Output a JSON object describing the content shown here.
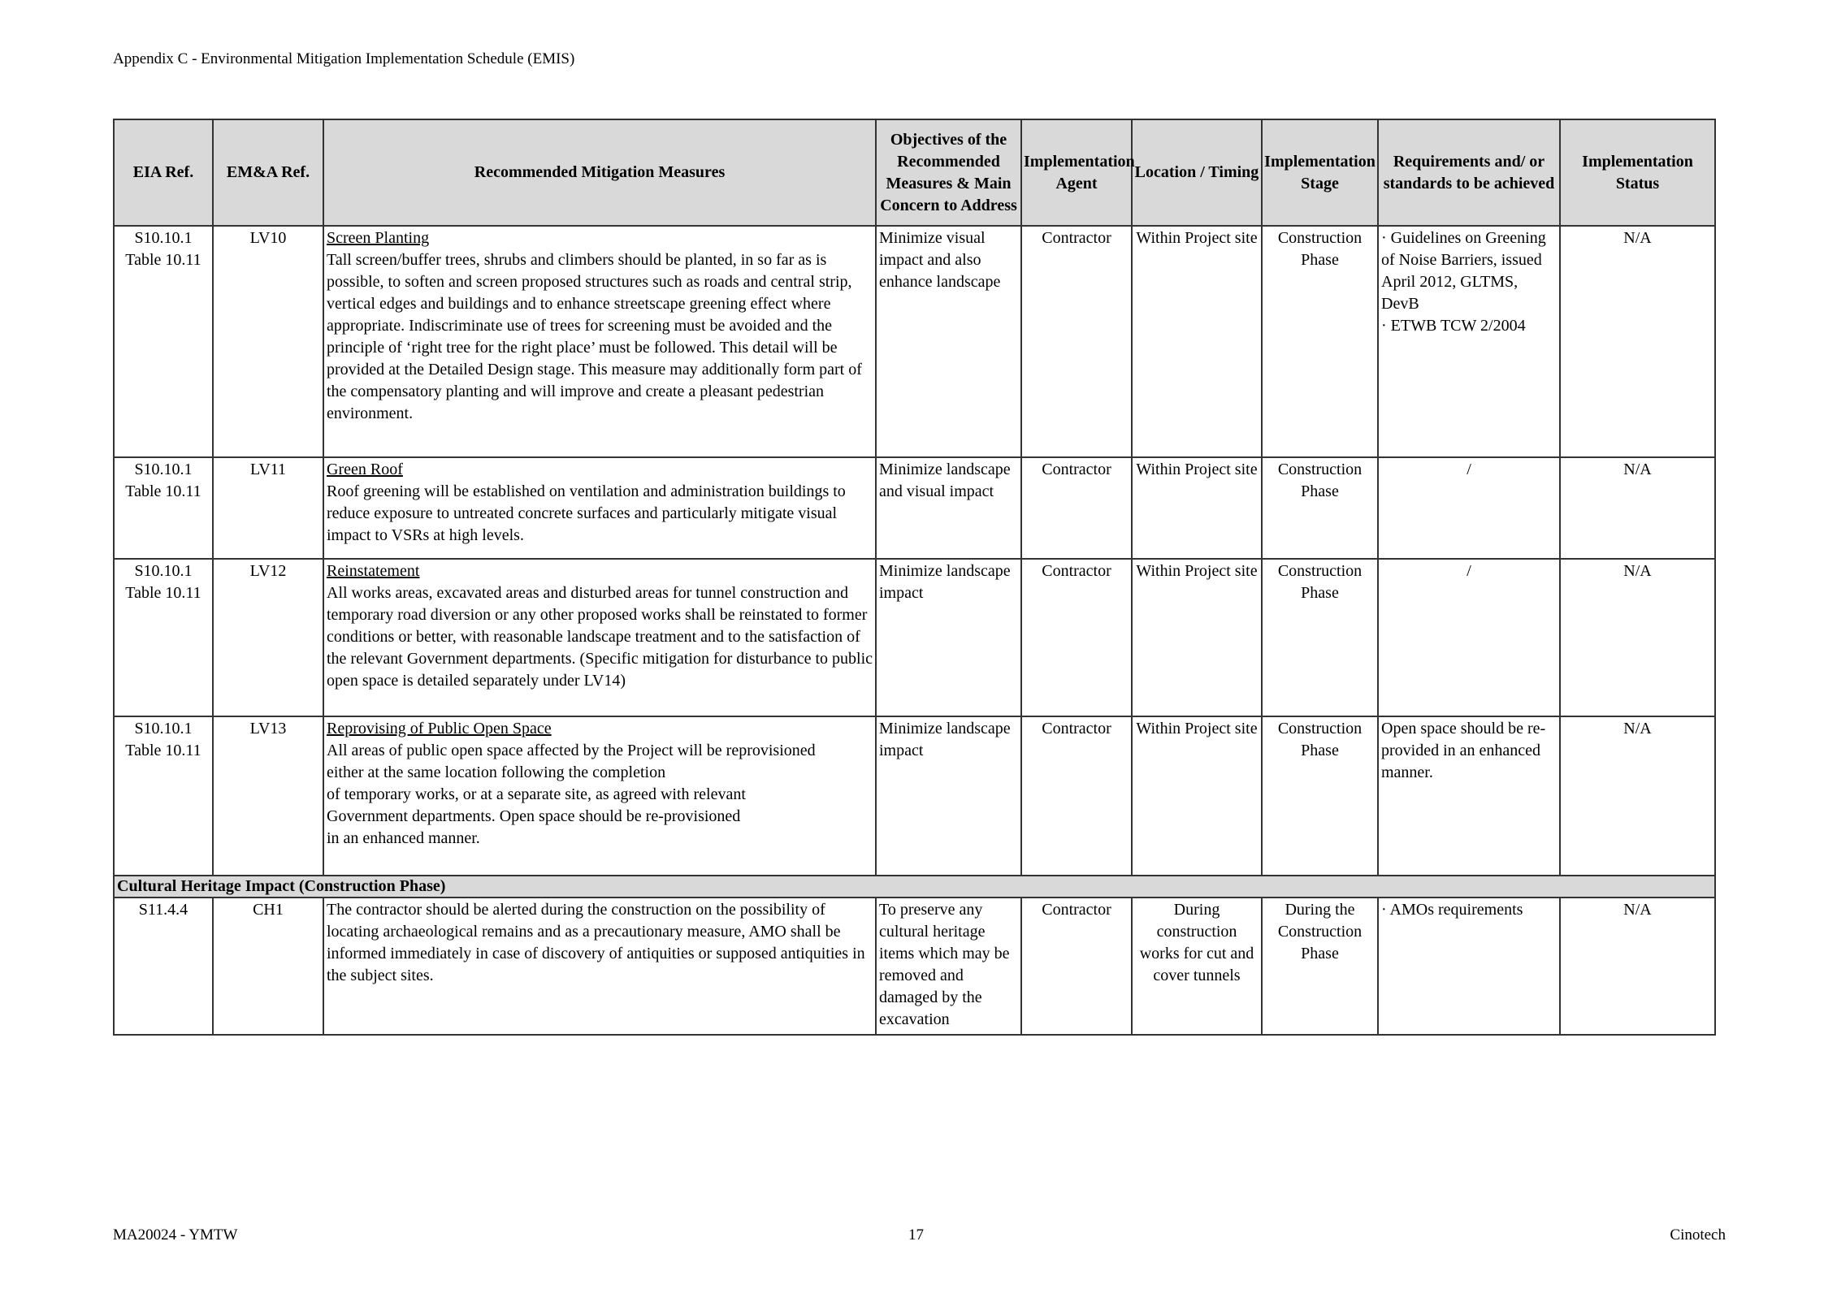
{
  "page_header": "Appendix C - Environmental Mitigation Implementation Schedule (EMIS)",
  "columns": [
    "EIA Ref.",
    "EM&A Ref.",
    "Recommended Mitigation Measures",
    "Objectives of the Recommended Measures & Main Concern to Address",
    "Implementation Agent",
    "Location / Timing",
    "Implementation Stage",
    "Requirements and/ or standards to be achieved",
    "Implementation Status"
  ],
  "rows": [
    {
      "eia": "S10.10.1\nTable 10.11",
      "ema": "LV10",
      "title": "Screen Planting",
      "measure": "Tall screen/buffer trees, shrubs and climbers should be planted, in so far as is possible, to soften and screen proposed structures such as roads and central strip, vertical edges and buildings and to enhance streetscape greening effect where appropriate. Indiscriminate use of trees for screening must be avoided and the principle of ‘right tree for the right place’ must be followed. This detail will be provided at the Detailed Design stage. This measure may additionally form part of the compensatory planting and will improve and create a pleasant pedestrian environment.",
      "objective": "Minimize visual impact and also enhance landscape",
      "agent": "Contractor",
      "location": "Within Project site",
      "stage": "Construction Phase",
      "requirements": "· Guidelines on Greening of Noise Barriers, issued April 2012, GLTMS, DevB\n· ETWB TCW 2/2004",
      "status": "N/A"
    },
    {
      "eia": "S10.10.1\nTable 10.11",
      "ema": "LV11",
      "title": "Green Roof",
      "measure": "Roof greening will be established on ventilation and administration buildings to reduce exposure to untreated concrete surfaces and particularly mitigate visual impact to VSRs at high levels.",
      "objective": "Minimize landscape and visual impact",
      "agent": "Contractor",
      "location": "Within Project site",
      "stage": "Construction Phase",
      "requirements": "/",
      "status": "N/A"
    },
    {
      "eia": "S10.10.1\nTable 10.11",
      "ema": "LV12",
      "title": "Reinstatement",
      "measure": "All works areas, excavated areas and disturbed areas for tunnel construction and temporary road diversion or any other proposed works shall be reinstated to former conditions or better, with reasonable landscape treatment and to the satisfaction of the relevant Government departments. (Specific mitigation for disturbance to public open space is detailed separately under LV14)",
      "objective": "Minimize landscape impact",
      "agent": "Contractor",
      "location": "Within Project site",
      "stage": "Construction Phase",
      "requirements": "/",
      "status": "N/A"
    },
    {
      "eia": "S10.10.1\nTable 10.11",
      "ema": "LV13",
      "title": "Reprovising of Public Open Space",
      "measure": "All areas of public open space affected by the Project will be reprovisioned\neither at the same location following the completion\nof temporary works, or at a separate site, as agreed with relevant\nGovernment departments. Open space should be re-provisioned\nin an enhanced manner.",
      "objective": "Minimize landscape impact",
      "agent": "Contractor",
      "location": "Within Project site",
      "stage": "Construction Phase",
      "requirements": "Open space should be re-provided in an enhanced manner.",
      "status": "N/A"
    }
  ],
  "section": "Cultural Heritage Impact (Construction Phase)",
  "section_row": {
    "eia": "S11.4.4",
    "ema": "CH1",
    "measure": "The contractor should be alerted during the construction on the possibility of locating archaeological remains and as a precautionary measure, AMO shall be informed immediately in case of discovery of antiquities or supposed antiquities in the subject sites.",
    "objective": "To preserve any cultural heritage items which may be removed and damaged by the excavation",
    "agent": "Contractor",
    "location": "During construction works for cut and cover tunnels",
    "stage": "During the Construction Phase",
    "requirements": "· AMOs requirements",
    "status": "N/A"
  },
  "footer": {
    "left": "MA20024 - YMTW",
    "page": "17",
    "right": "Cinotech"
  }
}
